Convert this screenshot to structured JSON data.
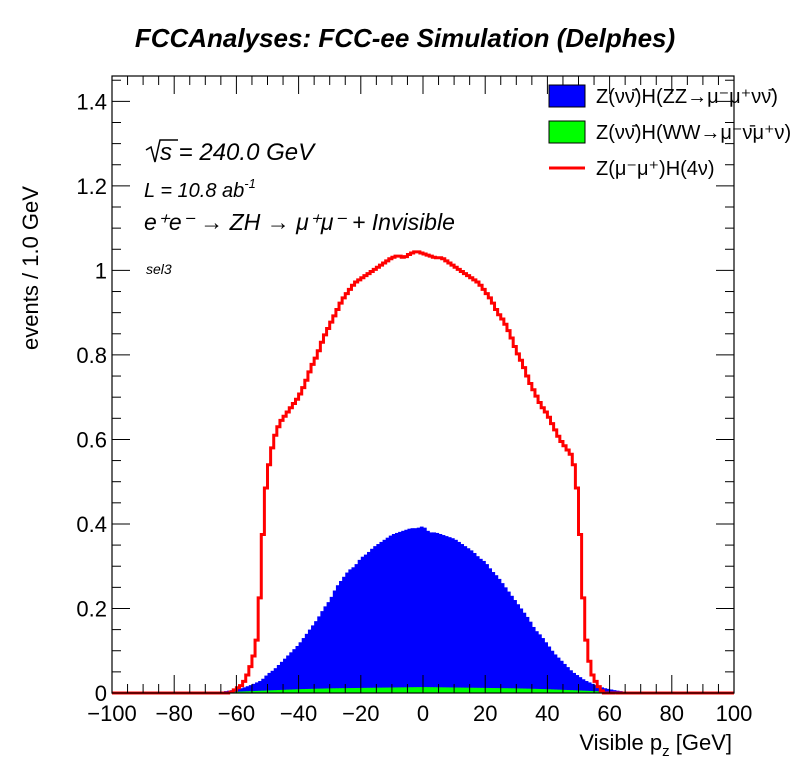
{
  "chart_data": {
    "type": "histogram",
    "title": "FCCAnalyses: FCC-ee Simulation (Delphes)",
    "xlabel": "Visible p",
    "xlabel_sub": "z",
    "xlabel_unit": " [GeV]",
    "ylabel": "events / 1.0 GeV",
    "xlim": [
      -100,
      100
    ],
    "ylim": [
      0,
      1.46
    ],
    "bin_width": 1.0,
    "x_ticks": [
      "−100",
      "−80",
      "−60",
      "−40",
      "−20",
      "0",
      "20",
      "40",
      "60",
      "80",
      "100"
    ],
    "x_tick_values": [
      -100,
      -80,
      -60,
      -40,
      -20,
      0,
      20,
      40,
      60,
      80,
      100
    ],
    "y_ticks": [
      "0",
      "0.2",
      "0.4",
      "0.6",
      "0.8",
      "1",
      "1.2",
      "1.4"
    ],
    "y_tick_values": [
      0,
      0.2,
      0.4,
      0.6,
      0.8,
      1.0,
      1.2,
      1.4
    ],
    "annotations": {
      "sqrt_s": "s = 240.0 GeV",
      "lumi": "L = 10.8 ab",
      "lumi_exp": "-1",
      "process": "e⁺e⁻ → ZH → μ⁺μ⁻ + Invisible",
      "selection": "sel3"
    },
    "series": [
      {
        "name": "Z(νν̄)H(ZZ→μ⁻μ⁺νν̄)",
        "style": "filled",
        "color": "#0000ff",
        "bins_x": [
          -70,
          -66,
          -62,
          -58,
          -55,
          -52,
          -50,
          -48,
          -46,
          -44,
          -42,
          -40,
          -38,
          -36,
          -34,
          -32,
          -30,
          -28,
          -26,
          -24,
          -22,
          -20,
          -18,
          -16,
          -14,
          -12,
          -10,
          -8,
          -6,
          -4,
          -2,
          0,
          2,
          4,
          6,
          8,
          10,
          12,
          14,
          16,
          18,
          20,
          22,
          24,
          26,
          28,
          30,
          32,
          34,
          36,
          38,
          40,
          42,
          44,
          46,
          48,
          50,
          52,
          55,
          58,
          62,
          66,
          70
        ],
        "bins_y": [
          0.0,
          0.002,
          0.006,
          0.012,
          0.02,
          0.03,
          0.045,
          0.055,
          0.07,
          0.085,
          0.1,
          0.115,
          0.135,
          0.155,
          0.175,
          0.2,
          0.22,
          0.25,
          0.27,
          0.29,
          0.3,
          0.32,
          0.33,
          0.345,
          0.355,
          0.365,
          0.375,
          0.38,
          0.385,
          0.39,
          0.39,
          0.395,
          0.38,
          0.38,
          0.375,
          0.37,
          0.365,
          0.355,
          0.345,
          0.335,
          0.32,
          0.31,
          0.29,
          0.275,
          0.255,
          0.235,
          0.215,
          0.195,
          0.175,
          0.15,
          0.135,
          0.115,
          0.095,
          0.08,
          0.065,
          0.05,
          0.04,
          0.03,
          0.02,
          0.012,
          0.006,
          0.002,
          0.0
        ]
      },
      {
        "name": "Z(νν̄)H(WW→μ⁻ν̄μ⁺ν)",
        "style": "filled",
        "color": "#00ff00",
        "bins_x": [
          -70,
          -60,
          -50,
          -40,
          -30,
          -20,
          -10,
          0,
          10,
          20,
          30,
          40,
          50,
          60,
          70
        ],
        "bins_y": [
          0.0,
          0.003,
          0.006,
          0.009,
          0.011,
          0.012,
          0.013,
          0.014,
          0.013,
          0.012,
          0.011,
          0.009,
          0.006,
          0.003,
          0.0
        ]
      },
      {
        "name": "Z(μ⁻μ⁺)H(4ν)",
        "style": "line",
        "color": "#ff0000",
        "bins_x": [
          -62,
          -58,
          -56,
          -54,
          -53,
          -52,
          -51,
          -50,
          -49,
          -48,
          -46,
          -44,
          -42,
          -40,
          -38,
          -36,
          -34,
          -32,
          -30,
          -28,
          -26,
          -24,
          -22,
          -20,
          -18,
          -16,
          -14,
          -12,
          -10,
          -8,
          -6,
          -4,
          -2,
          0,
          2,
          4,
          6,
          8,
          10,
          12,
          14,
          16,
          18,
          20,
          22,
          24,
          26,
          28,
          30,
          32,
          34,
          36,
          38,
          40,
          42,
          44,
          46,
          48,
          49,
          50,
          51,
          52,
          53,
          54,
          56,
          58,
          62
        ],
        "bins_y": [
          0.0,
          0.02,
          0.05,
          0.1,
          0.15,
          0.3,
          0.45,
          0.52,
          0.56,
          0.6,
          0.64,
          0.66,
          0.68,
          0.7,
          0.73,
          0.77,
          0.8,
          0.84,
          0.87,
          0.9,
          0.93,
          0.95,
          0.97,
          0.98,
          0.99,
          1.0,
          1.01,
          1.02,
          1.03,
          1.035,
          1.03,
          1.04,
          1.045,
          1.04,
          1.035,
          1.03,
          1.03,
          1.02,
          1.01,
          1.0,
          0.99,
          0.98,
          0.97,
          0.95,
          0.93,
          0.9,
          0.88,
          0.85,
          0.81,
          0.78,
          0.74,
          0.71,
          0.68,
          0.66,
          0.63,
          0.6,
          0.58,
          0.56,
          0.52,
          0.45,
          0.3,
          0.15,
          0.1,
          0.05,
          0.02,
          0.0,
          0.0
        ]
      }
    ],
    "legend_position": "top-right"
  }
}
